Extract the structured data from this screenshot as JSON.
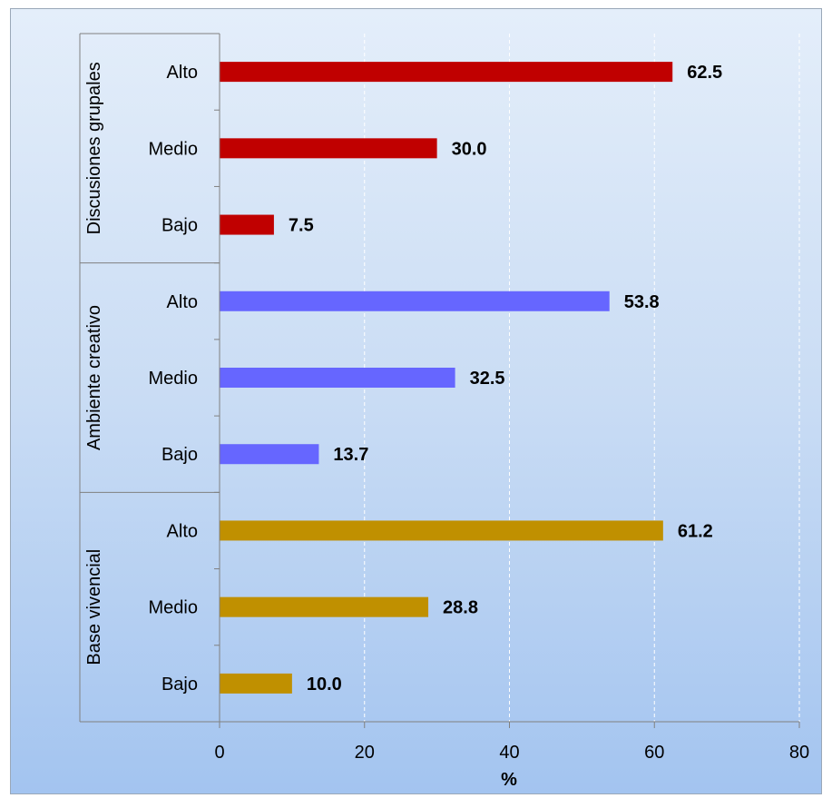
{
  "chart_data": {
    "type": "bar",
    "orientation": "horizontal",
    "xlabel": "%",
    "xlim": [
      0,
      80
    ],
    "x_ticks": [
      "0",
      "20",
      "40",
      "60",
      "80"
    ],
    "grid": "vertical dashed",
    "groups": [
      {
        "name": "Discusiones grupales",
        "color": "#c00000",
        "categories": [
          "Alto",
          "Medio",
          "Bajo"
        ],
        "values": [
          62.5,
          30.0,
          7.5
        ],
        "labels": [
          "62.5",
          "30.0",
          "7.5"
        ]
      },
      {
        "name": "Ambiente creativo",
        "color": "#6666ff",
        "categories": [
          "Alto",
          "Medio",
          "Bajo"
        ],
        "values": [
          53.8,
          32.5,
          13.7
        ],
        "labels": [
          "53.8",
          "32.5",
          "13.7"
        ]
      },
      {
        "name": "Base vivencial",
        "color": "#c09000",
        "categories": [
          "Alto",
          "Medio",
          "Bajo"
        ],
        "values": [
          61.2,
          28.8,
          10.0
        ],
        "labels": [
          "61.2",
          "28.8",
          "10.0"
        ]
      }
    ]
  }
}
